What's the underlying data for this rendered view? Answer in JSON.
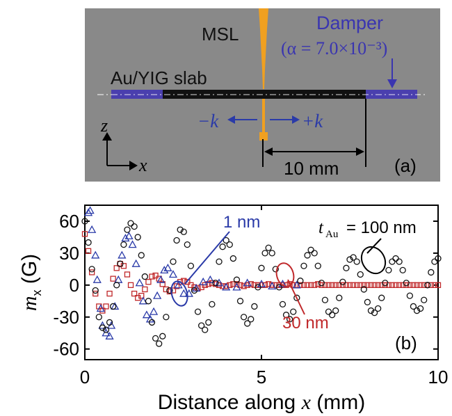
{
  "colors": {
    "panel_bg": "#898989",
    "damper": "#4a3fae",
    "slab": "#111111",
    "msl": "#f0a020",
    "series_100nm": "#111111",
    "series_1nm": "#2a3aa8",
    "series_30nm": "#c0282a"
  },
  "schematic": {
    "msl_label": "MSL",
    "damper_label": "Damper",
    "damper_alpha": "(α = 7.0×10⁻³)",
    "slab_label": "Au/YIG slab",
    "minus_k_label": "−k",
    "plus_k_label": "+k",
    "z_axis_label": "z",
    "x_axis_label": "x",
    "dimension_label": "10 mm",
    "panel_label": "(a)"
  },
  "chart_data": {
    "type": "scatter",
    "xlabel_text": "Distance along ",
    "xlabel_var": "x",
    "xlabel_unit": " (mm)",
    "ylabel_var": "m",
    "ylabel_sub": "x",
    "ylabel_unit": " (G)",
    "xlim": [
      0,
      10
    ],
    "ylim": [
      -70,
      75
    ],
    "x_ticks": [
      0,
      5,
      10
    ],
    "y_ticks": [
      60,
      30,
      0,
      -30,
      -60
    ],
    "panel_label": "(b)",
    "annotations": {
      "t100": "= 100 nm",
      "t100_var": "t",
      "t100_sub": "Au",
      "t1": "1 nm",
      "t30": "30 nm"
    },
    "series": [
      {
        "label": "t_Au = 100 nm",
        "marker": "circle",
        "x": [
          0.0,
          0.1,
          0.2,
          0.3,
          0.4,
          0.5,
          0.6,
          0.7,
          0.8,
          0.9,
          1.0,
          1.1,
          1.2,
          1.3,
          1.4,
          1.5,
          1.6,
          1.7,
          1.8,
          1.9,
          2.0,
          2.1,
          2.2,
          2.3,
          2.4,
          2.5,
          2.6,
          2.7,
          2.8,
          2.9,
          3.0,
          3.1,
          3.2,
          3.3,
          3.4,
          3.5,
          3.6,
          3.7,
          3.8,
          3.9,
          4.0,
          4.1,
          4.2,
          4.3,
          4.4,
          4.5,
          4.6,
          4.7,
          4.8,
          4.9,
          5.0,
          5.1,
          5.2,
          5.3,
          5.4,
          5.5,
          5.6,
          5.7,
          5.8,
          5.9,
          6.0,
          6.1,
          6.2,
          6.3,
          6.4,
          6.5,
          6.6,
          6.7,
          6.8,
          6.9,
          7.0,
          7.1,
          7.2,
          7.3,
          7.4,
          7.5,
          7.6,
          7.7,
          7.8,
          7.9,
          8.0,
          8.1,
          8.2,
          8.3,
          8.4,
          8.5,
          8.6,
          8.7,
          8.8,
          8.9,
          9.0,
          9.1,
          9.2,
          9.3,
          9.4,
          9.5,
          9.6,
          9.7,
          9.8,
          9.9,
          10.0
        ],
        "y": [
          60,
          40,
          15,
          -5,
          -30,
          -40,
          -42,
          -35,
          -20,
          0,
          20,
          38,
          52,
          58,
          55,
          45,
          28,
          8,
          -15,
          -35,
          -50,
          -55,
          -48,
          -30,
          -5,
          22,
          42,
          52,
          50,
          38,
          18,
          -5,
          -25,
          -38,
          -42,
          -35,
          -18,
          2,
          22,
          36,
          42,
          38,
          25,
          5,
          -15,
          -30,
          -36,
          -32,
          -20,
          -2,
          16,
          30,
          35,
          30,
          15,
          -2,
          -18,
          -28,
          -32,
          -25,
          -12,
          4,
          18,
          28,
          33,
          30,
          18,
          2,
          -14,
          -25,
          -28,
          -24,
          -12,
          3,
          16,
          24,
          26,
          22,
          10,
          -4,
          -16,
          -24,
          -26,
          -22,
          -12,
          2,
          14,
          22,
          25,
          22,
          14,
          2,
          -10,
          -20,
          -24,
          -22,
          -14,
          0,
          12,
          22,
          25
        ]
      },
      {
        "label": "1 nm",
        "marker": "triangle",
        "x": [
          0.1,
          0.15,
          0.2,
          0.3,
          0.35,
          0.45,
          0.5,
          0.6,
          0.7,
          0.75,
          0.85,
          0.95,
          1.05,
          1.15,
          1.25,
          1.35,
          1.45,
          1.55,
          1.65,
          1.75,
          1.85,
          1.95,
          2.05,
          2.15,
          2.25,
          2.35,
          2.5,
          2.65,
          2.8,
          2.95,
          3.15,
          3.35,
          3.55,
          3.8,
          4.0,
          4.3,
          4.6,
          5.0,
          5.3,
          5.6,
          6.0
        ],
        "y": [
          68,
          70,
          52,
          28,
          5,
          -22,
          -38,
          -45,
          -48,
          -38,
          -20,
          5,
          28,
          44,
          46,
          38,
          20,
          2,
          -15,
          -28,
          -32,
          -25,
          -10,
          5,
          14,
          16,
          10,
          0,
          -8,
          -8,
          -3,
          3,
          5,
          2,
          -2,
          -2,
          2,
          1,
          -1,
          1,
          0
        ]
      },
      {
        "label": "30 nm",
        "marker": "square",
        "x": [
          0.0,
          0.1,
          0.2,
          0.3,
          0.4,
          0.5,
          0.6,
          0.7,
          0.8,
          0.9,
          1.0,
          1.1,
          1.2,
          1.3,
          1.4,
          1.5,
          1.6,
          1.7,
          1.8,
          1.9,
          2.0,
          2.1,
          2.2,
          2.3,
          2.4,
          2.5,
          2.6,
          2.7,
          2.8,
          2.9,
          3.0,
          3.1,
          3.2,
          3.3,
          3.4,
          3.5,
          3.6,
          3.7,
          3.8,
          3.9,
          4.0,
          4.1,
          4.2,
          4.3,
          4.4,
          4.5,
          4.6,
          4.7,
          4.8,
          4.9,
          5.0,
          5.1,
          5.2,
          5.3,
          5.4,
          5.5,
          5.6,
          5.7,
          5.8,
          5.9,
          6.0,
          6.1,
          6.2,
          6.3,
          6.4,
          6.5,
          6.6,
          6.7,
          6.8,
          6.9,
          7.0,
          7.1,
          7.2,
          7.3,
          7.4,
          7.5,
          7.6,
          7.7,
          7.8,
          7.9,
          8.0,
          8.1,
          8.2,
          8.3,
          8.4,
          8.5,
          8.6,
          8.7,
          8.8,
          8.9,
          9.0,
          9.1,
          9.2,
          9.3,
          9.4,
          9.5,
          9.6,
          9.7,
          9.8,
          9.9,
          10.0
        ],
        "y": [
          48,
          32,
          12,
          -8,
          -20,
          -24,
          -20,
          -8,
          6,
          16,
          20,
          18,
          10,
          0,
          -8,
          -12,
          -10,
          -4,
          3,
          8,
          9,
          6,
          1,
          -4,
          -6,
          -5,
          -1,
          3,
          4,
          3,
          0,
          -2,
          -3,
          -2,
          0,
          1,
          2,
          1,
          0,
          -1,
          -1,
          0,
          1,
          1,
          0,
          -1,
          0,
          1,
          0,
          0,
          0,
          0,
          1,
          0,
          0,
          0,
          0,
          0,
          1,
          0,
          0,
          0,
          0,
          0,
          0,
          0,
          1,
          0,
          0,
          0,
          0,
          0,
          0,
          0,
          0,
          0,
          0,
          0,
          0,
          0,
          0,
          0,
          0,
          0,
          0,
          0,
          0,
          0,
          0,
          0,
          0,
          0,
          0,
          0,
          0,
          0,
          0,
          0,
          0,
          0,
          0
        ]
      }
    ]
  }
}
